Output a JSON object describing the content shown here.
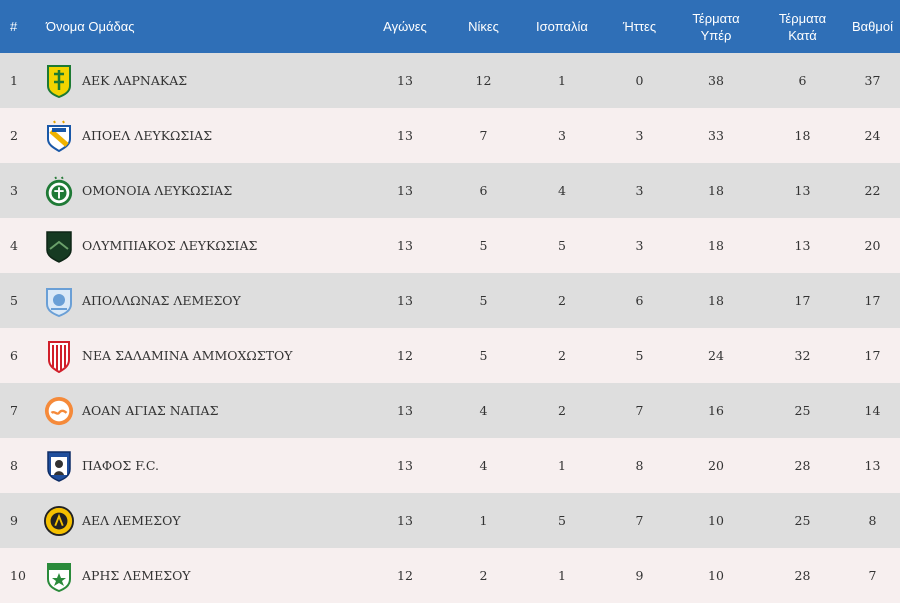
{
  "headers": {
    "pos": "#",
    "team": "Όνομα Ομάδας",
    "played": "Αγώνες",
    "wins": "Νίκες",
    "draws": "Ισοπαλία",
    "losses": "Ήττες",
    "gf_line1": "Τέρματα",
    "gf_line2": "Υπέρ",
    "ga_line1": "Τέρματα",
    "ga_line2": "Κατά",
    "points": "Βαθμοί"
  },
  "colors": {
    "header_bg": "#2f6fb7",
    "row_odd": "#dedede",
    "row_even": "#f7efef"
  },
  "rows": [
    {
      "pos": "1",
      "team": "ΑΕΚ ΛΑΡΝΑΚΑΣ",
      "crest_icon": "aek-larnaca-crest-icon",
      "played": "13",
      "wins": "12",
      "draws": "1",
      "losses": "0",
      "gf": "38",
      "ga": "6",
      "points": "37"
    },
    {
      "pos": "2",
      "team": "ΑΠΟΕΛ ΛΕΥΚΩΣΙΑΣ",
      "crest_icon": "apoel-crest-icon",
      "played": "13",
      "wins": "7",
      "draws": "3",
      "losses": "3",
      "gf": "33",
      "ga": "18",
      "points": "24"
    },
    {
      "pos": "3",
      "team": "ΟΜΟΝΟΙΑ ΛΕΥΚΩΣΙΑΣ",
      "crest_icon": "omonoia-crest-icon",
      "played": "13",
      "wins": "6",
      "draws": "4",
      "losses": "3",
      "gf": "18",
      "ga": "13",
      "points": "22"
    },
    {
      "pos": "4",
      "team": "ΟΛΥΜΠΙΑΚΟΣ ΛΕΥΚΩΣΙΑΣ",
      "crest_icon": "olympiakos-nicosia-crest-icon",
      "played": "13",
      "wins": "5",
      "draws": "5",
      "losses": "3",
      "gf": "18",
      "ga": "13",
      "points": "20"
    },
    {
      "pos": "5",
      "team": "ΑΠΟΛΛΩΝΑΣ ΛΕΜΕΣΟΥ",
      "crest_icon": "apollon-crest-icon",
      "played": "13",
      "wins": "5",
      "draws": "2",
      "losses": "6",
      "gf": "18",
      "ga": "17",
      "points": "17"
    },
    {
      "pos": "6",
      "team": "ΝΕΑ ΣΑΛΑΜΙΝΑ ΑΜΜΟΧΩΣΤΟΥ",
      "crest_icon": "nea-salamina-crest-icon",
      "played": "12",
      "wins": "5",
      "draws": "2",
      "losses": "5",
      "gf": "24",
      "ga": "32",
      "points": "17"
    },
    {
      "pos": "7",
      "team": "ΑΟΑΝ ΑΓΙΑΣ ΝΑΠΑΣ",
      "crest_icon": "aoan-crest-icon",
      "played": "13",
      "wins": "4",
      "draws": "2",
      "losses": "7",
      "gf": "16",
      "ga": "25",
      "points": "14"
    },
    {
      "pos": "8",
      "team": "ΠΑΦΟΣ F.C.",
      "crest_icon": "pafos-crest-icon",
      "played": "13",
      "wins": "4",
      "draws": "1",
      "losses": "8",
      "gf": "20",
      "ga": "28",
      "points": "13"
    },
    {
      "pos": "9",
      "team": "ΑΕΛ ΛΕΜΕΣΟΥ",
      "crest_icon": "ael-crest-icon",
      "played": "13",
      "wins": "1",
      "draws": "5",
      "losses": "7",
      "gf": "10",
      "ga": "25",
      "points": "8"
    },
    {
      "pos": "10",
      "team": "ΑΡΗΣ ΛΕΜΕΣΟΥ",
      "crest_icon": "aris-crest-icon",
      "played": "12",
      "wins": "2",
      "draws": "1",
      "losses": "9",
      "gf": "10",
      "ga": "28",
      "points": "7"
    }
  ]
}
